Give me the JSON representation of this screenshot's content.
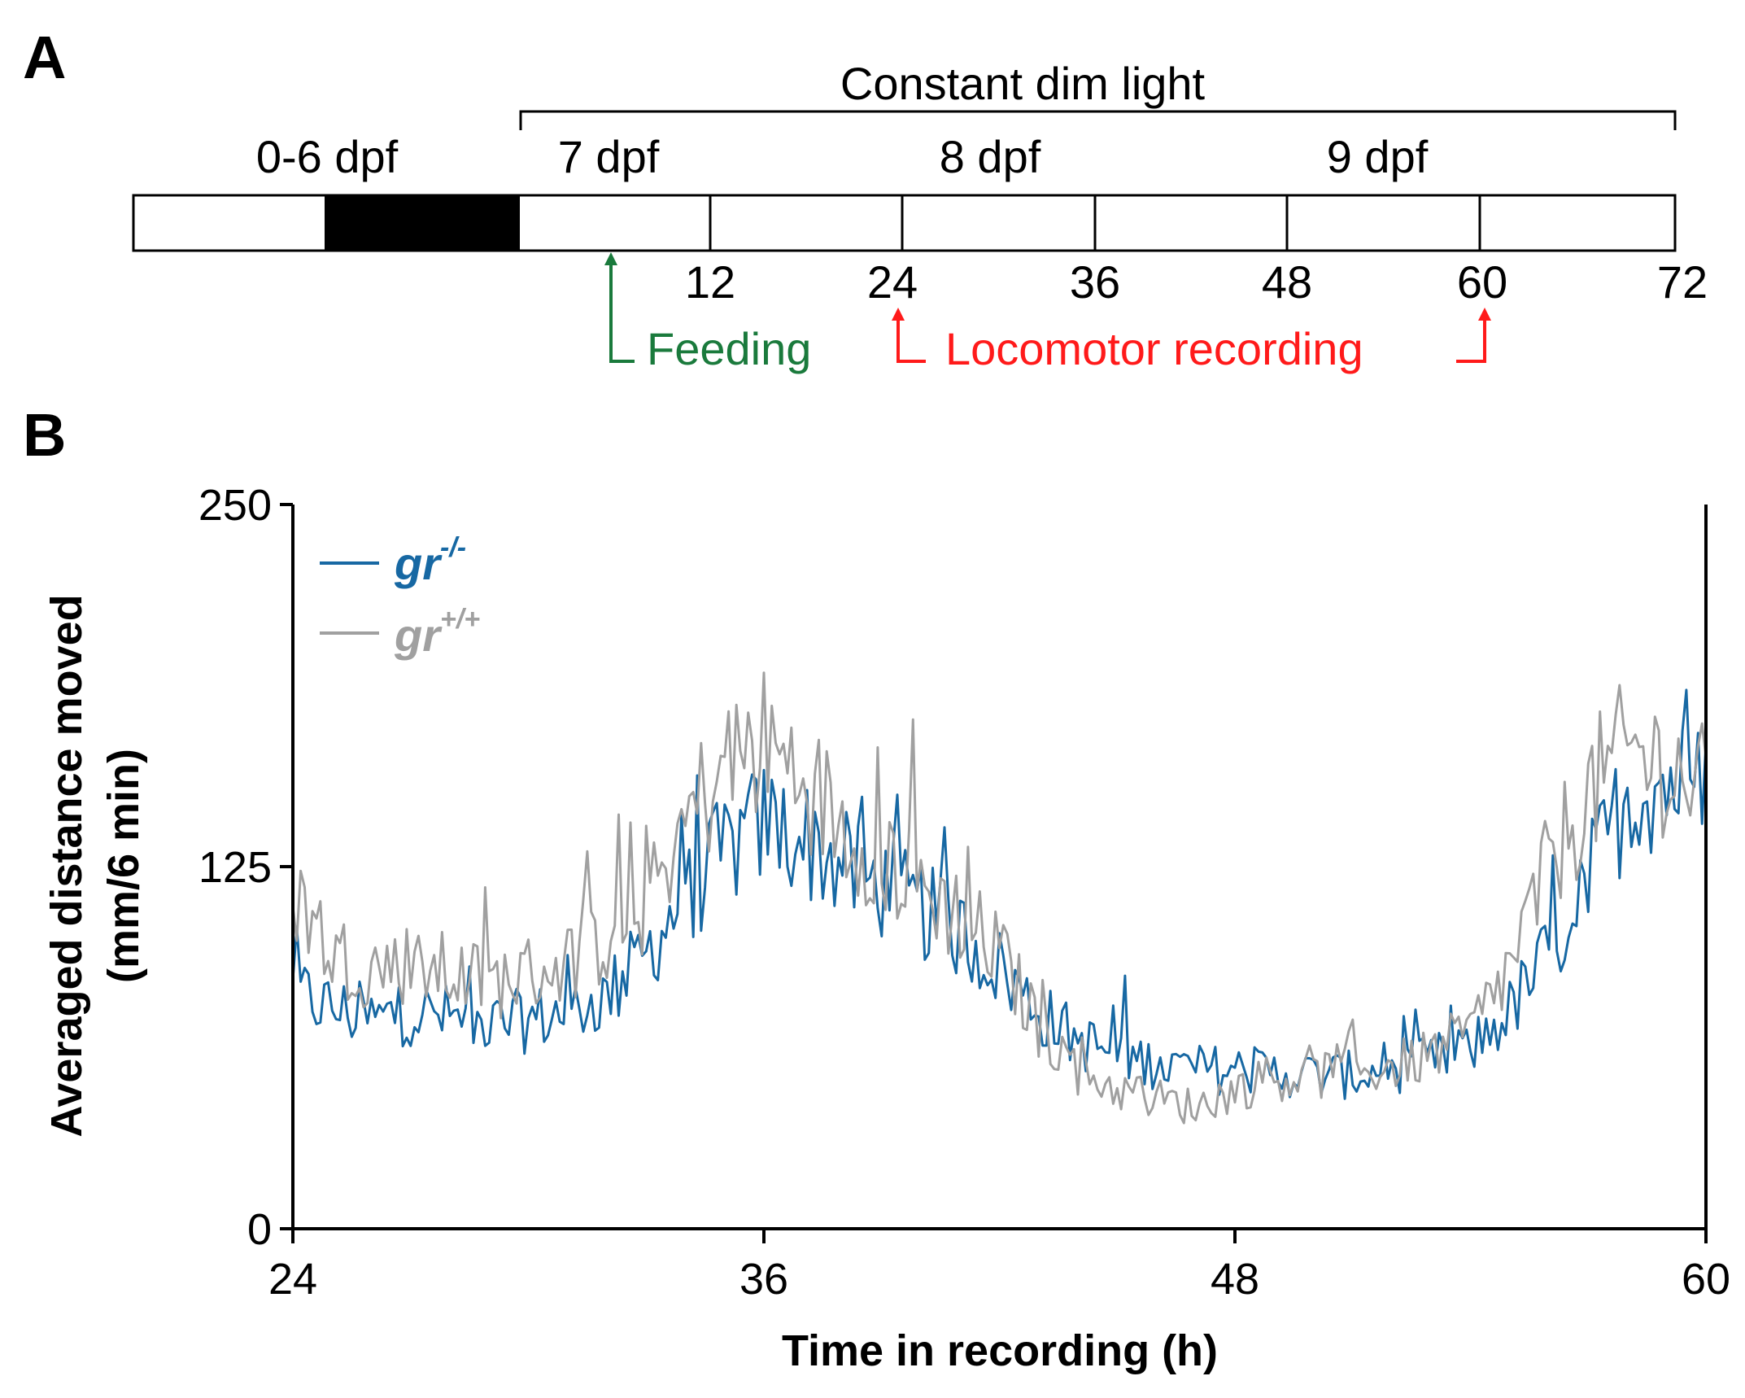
{
  "panel_a": {
    "letter": "A",
    "bracket_label": "Constant dim light",
    "day_labels": [
      "0-6 dpf",
      "7 dpf",
      "8 dpf",
      "9 dpf"
    ],
    "tick_labels": [
      "12",
      "24",
      "36",
      "48",
      "60",
      "72"
    ],
    "feeding_label": "Feeding",
    "recording_label": "Locomotor recording",
    "colors": {
      "feeding": "#1a7a3c",
      "recording": "#ff1a1a",
      "dark_block": "#000000"
    }
  },
  "panel_b": {
    "letter": "B",
    "legend": {
      "mutant": {
        "text": "gr",
        "sup": "-/-",
        "color": "#1768a3"
      },
      "wildtype": {
        "text": "gr",
        "sup": "+/+",
        "color": "#a0a0a0"
      }
    }
  },
  "chart_data": {
    "type": "line",
    "title": "",
    "xlabel": "Time in recording (h)",
    "ylabel_line1": "Averaged distance moved",
    "ylabel_line2": "(mm/6 min)",
    "xlim": [
      24,
      60
    ],
    "ylim": [
      0,
      250
    ],
    "xticks": [
      24,
      36,
      48,
      60
    ],
    "yticks": [
      0,
      125,
      250
    ],
    "grid": false,
    "legend_position": "top-left",
    "series": [
      {
        "name": "gr-/-",
        "color": "#1768a3",
        "x": [
          24,
          25,
          26,
          27,
          28,
          29,
          30,
          31,
          32,
          33,
          34,
          35,
          36,
          37,
          38,
          39,
          40,
          41,
          42,
          43,
          44,
          45,
          46,
          47,
          48,
          49,
          50,
          51,
          52,
          53,
          54,
          55,
          56,
          57,
          58,
          59,
          60
        ],
        "values": [
          82,
          76,
          72,
          75,
          73,
          70,
          72,
          75,
          80,
          95,
          115,
          130,
          140,
          135,
          125,
          118,
          110,
          102,
          90,
          75,
          65,
          60,
          57,
          55,
          55,
          54,
          53,
          53,
          55,
          58,
          62,
          75,
          95,
          120,
          150,
          155,
          150
        ]
      },
      {
        "name": "gr+/+",
        "color": "#a0a0a0",
        "x": [
          24,
          25,
          26,
          27,
          28,
          29,
          30,
          31,
          32,
          33,
          34,
          35,
          36,
          37,
          38,
          39,
          40,
          41,
          42,
          43,
          44,
          45,
          46,
          47,
          48,
          49,
          50,
          51,
          52,
          53,
          54,
          55,
          56,
          57,
          58,
          59,
          60
        ],
        "values": [
          118,
          95,
          90,
          92,
          88,
          85,
          88,
          92,
          100,
          112,
          140,
          160,
          168,
          155,
          140,
          128,
          118,
          108,
          95,
          70,
          55,
          48,
          45,
          42,
          48,
          52,
          53,
          54,
          56,
          60,
          68,
          90,
          125,
          150,
          165,
          160,
          150
        ]
      }
    ]
  }
}
